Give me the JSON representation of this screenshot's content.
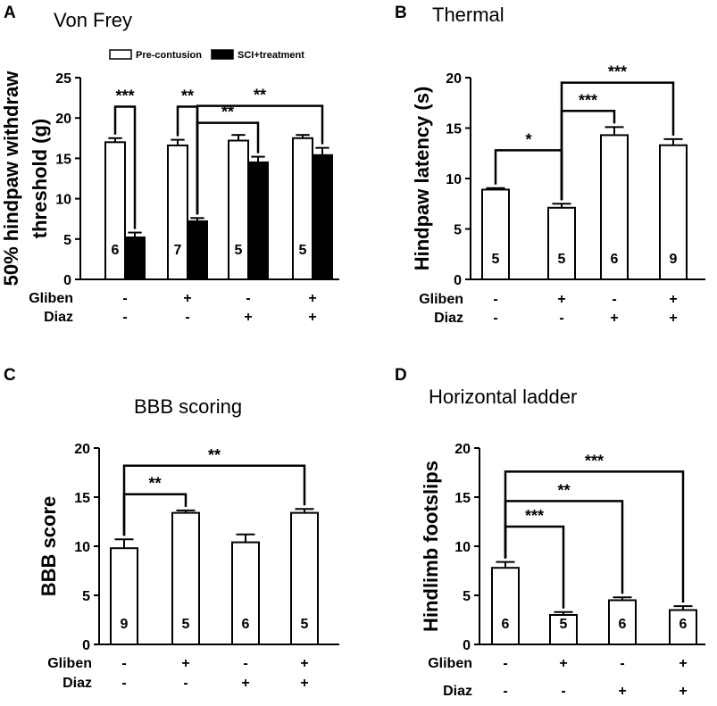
{
  "figure": {
    "font_color": "#000000",
    "bar_fill_open": "#ffffff",
    "bar_fill_solid": "#000000"
  },
  "chart_data": [
    {
      "panel": "A",
      "type": "bar",
      "title": "Von Frey",
      "ylabel": "50% hindpaw withdraw threshold (g)",
      "ylabel_lines": [
        "50% hindpaw withdraw",
        "threshold (g)"
      ],
      "ylim": [
        0,
        25
      ],
      "yticks": [
        0,
        5,
        10,
        15,
        20,
        25
      ],
      "legend": [
        "Pre-contusion",
        "SCI+treatment"
      ],
      "legend_position": "top",
      "row_labels": [
        "Gliben",
        "Diaz"
      ],
      "group_marks": [
        [
          "-",
          "+",
          "-",
          "+"
        ],
        [
          "-",
          "-",
          "+",
          "+"
        ]
      ],
      "series": [
        {
          "name": "Pre-contusion",
          "fill": "open",
          "values": [
            17.0,
            16.6,
            17.2,
            17.5
          ],
          "errors": [
            0.5,
            0.7,
            0.7,
            0.4
          ]
        },
        {
          "name": "SCI+treatment",
          "fill": "solid",
          "values": [
            5.2,
            7.2,
            14.5,
            15.4
          ],
          "errors": [
            0.6,
            0.4,
            0.7,
            0.9
          ]
        }
      ],
      "n_labels": [
        "6",
        "7",
        "5",
        "5"
      ],
      "significance": [
        {
          "from": [
            0,
            0
          ],
          "to": [
            0,
            1
          ],
          "y": 21.4,
          "label": "***"
        },
        {
          "from": [
            1,
            0
          ],
          "to": [
            1,
            1
          ],
          "y": 21.4,
          "label": "**"
        },
        {
          "from": [
            1,
            1
          ],
          "to": [
            2,
            1
          ],
          "y": 19.4,
          "label": "**"
        },
        {
          "from": [
            1,
            1
          ],
          "to": [
            3,
            1
          ],
          "y": 21.5,
          "label": "**"
        }
      ]
    },
    {
      "panel": "B",
      "type": "bar",
      "title": "Thermal",
      "ylabel": "Hindpaw latency (s)",
      "ylabel_lines": [
        "Hindpaw latency (s)"
      ],
      "ylim": [
        0,
        20
      ],
      "yticks": [
        0,
        5,
        10,
        15,
        20
      ],
      "row_labels": [
        "Gliben",
        "Diaz"
      ],
      "group_marks": [
        [
          "-",
          "+",
          "-",
          "+"
        ],
        [
          "-",
          "-",
          "+",
          "+"
        ]
      ],
      "series": [
        {
          "name": "",
          "fill": "open",
          "values": [
            8.9,
            7.1,
            14.3,
            13.3
          ],
          "errors": [
            0.15,
            0.4,
            0.8,
            0.6
          ]
        }
      ],
      "n_labels": [
        "5",
        "5",
        "6",
        "9"
      ],
      "significance": [
        {
          "from": [
            0,
            0
          ],
          "to": [
            1,
            0
          ],
          "y": 12.8,
          "label": "*"
        },
        {
          "from": [
            1,
            0
          ],
          "to": [
            2,
            0
          ],
          "y": 16.7,
          "label": "***"
        },
        {
          "from": [
            1,
            0
          ],
          "to": [
            3,
            0
          ],
          "y": 19.5,
          "label": "***"
        }
      ]
    },
    {
      "panel": "C",
      "type": "bar",
      "title": "BBB scoring",
      "ylabel": "BBB score",
      "ylabel_lines": [
        "BBB score"
      ],
      "ylim": [
        0,
        20
      ],
      "yticks": [
        0,
        5,
        10,
        15,
        20
      ],
      "row_labels": [
        "Gliben",
        "Diaz"
      ],
      "group_marks": [
        [
          "-",
          "+",
          "-",
          "+"
        ],
        [
          "-",
          "-",
          "+",
          "+"
        ]
      ],
      "series": [
        {
          "name": "",
          "fill": "open",
          "values": [
            9.8,
            13.4,
            10.4,
            13.4
          ],
          "errors": [
            0.9,
            0.25,
            0.8,
            0.4
          ]
        }
      ],
      "n_labels": [
        "9",
        "5",
        "6",
        "5"
      ],
      "significance": [
        {
          "from": [
            0,
            0
          ],
          "to": [
            1,
            0
          ],
          "y": 15.3,
          "label": "**"
        },
        {
          "from": [
            0,
            0
          ],
          "to": [
            3,
            0
          ],
          "y": 18.2,
          "label": "**"
        }
      ]
    },
    {
      "panel": "D",
      "type": "bar",
      "title": "Horizontal ladder",
      "ylabel": "Hindlimb footslips",
      "ylabel_lines": [
        "Hindlimb footslips"
      ],
      "ylim": [
        0,
        20
      ],
      "yticks": [
        0,
        5,
        10,
        15,
        20
      ],
      "row_labels": [
        "Gliben",
        "Diaz"
      ],
      "group_marks": [
        [
          "-",
          "+",
          "-",
          "+"
        ],
        [
          "-",
          "-",
          "+",
          "+"
        ]
      ],
      "series": [
        {
          "name": "",
          "fill": "open",
          "values": [
            7.8,
            3.0,
            4.5,
            3.5
          ],
          "errors": [
            0.6,
            0.3,
            0.3,
            0.4
          ]
        }
      ],
      "n_labels": [
        "6",
        "5",
        "6",
        "6"
      ],
      "significance": [
        {
          "from": [
            0,
            0
          ],
          "to": [
            1,
            0
          ],
          "y": 12.0,
          "label": "***"
        },
        {
          "from": [
            0,
            0
          ],
          "to": [
            2,
            0
          ],
          "y": 14.6,
          "label": "**"
        },
        {
          "from": [
            0,
            0
          ],
          "to": [
            3,
            0
          ],
          "y": 17.6,
          "label": "***"
        }
      ]
    }
  ]
}
